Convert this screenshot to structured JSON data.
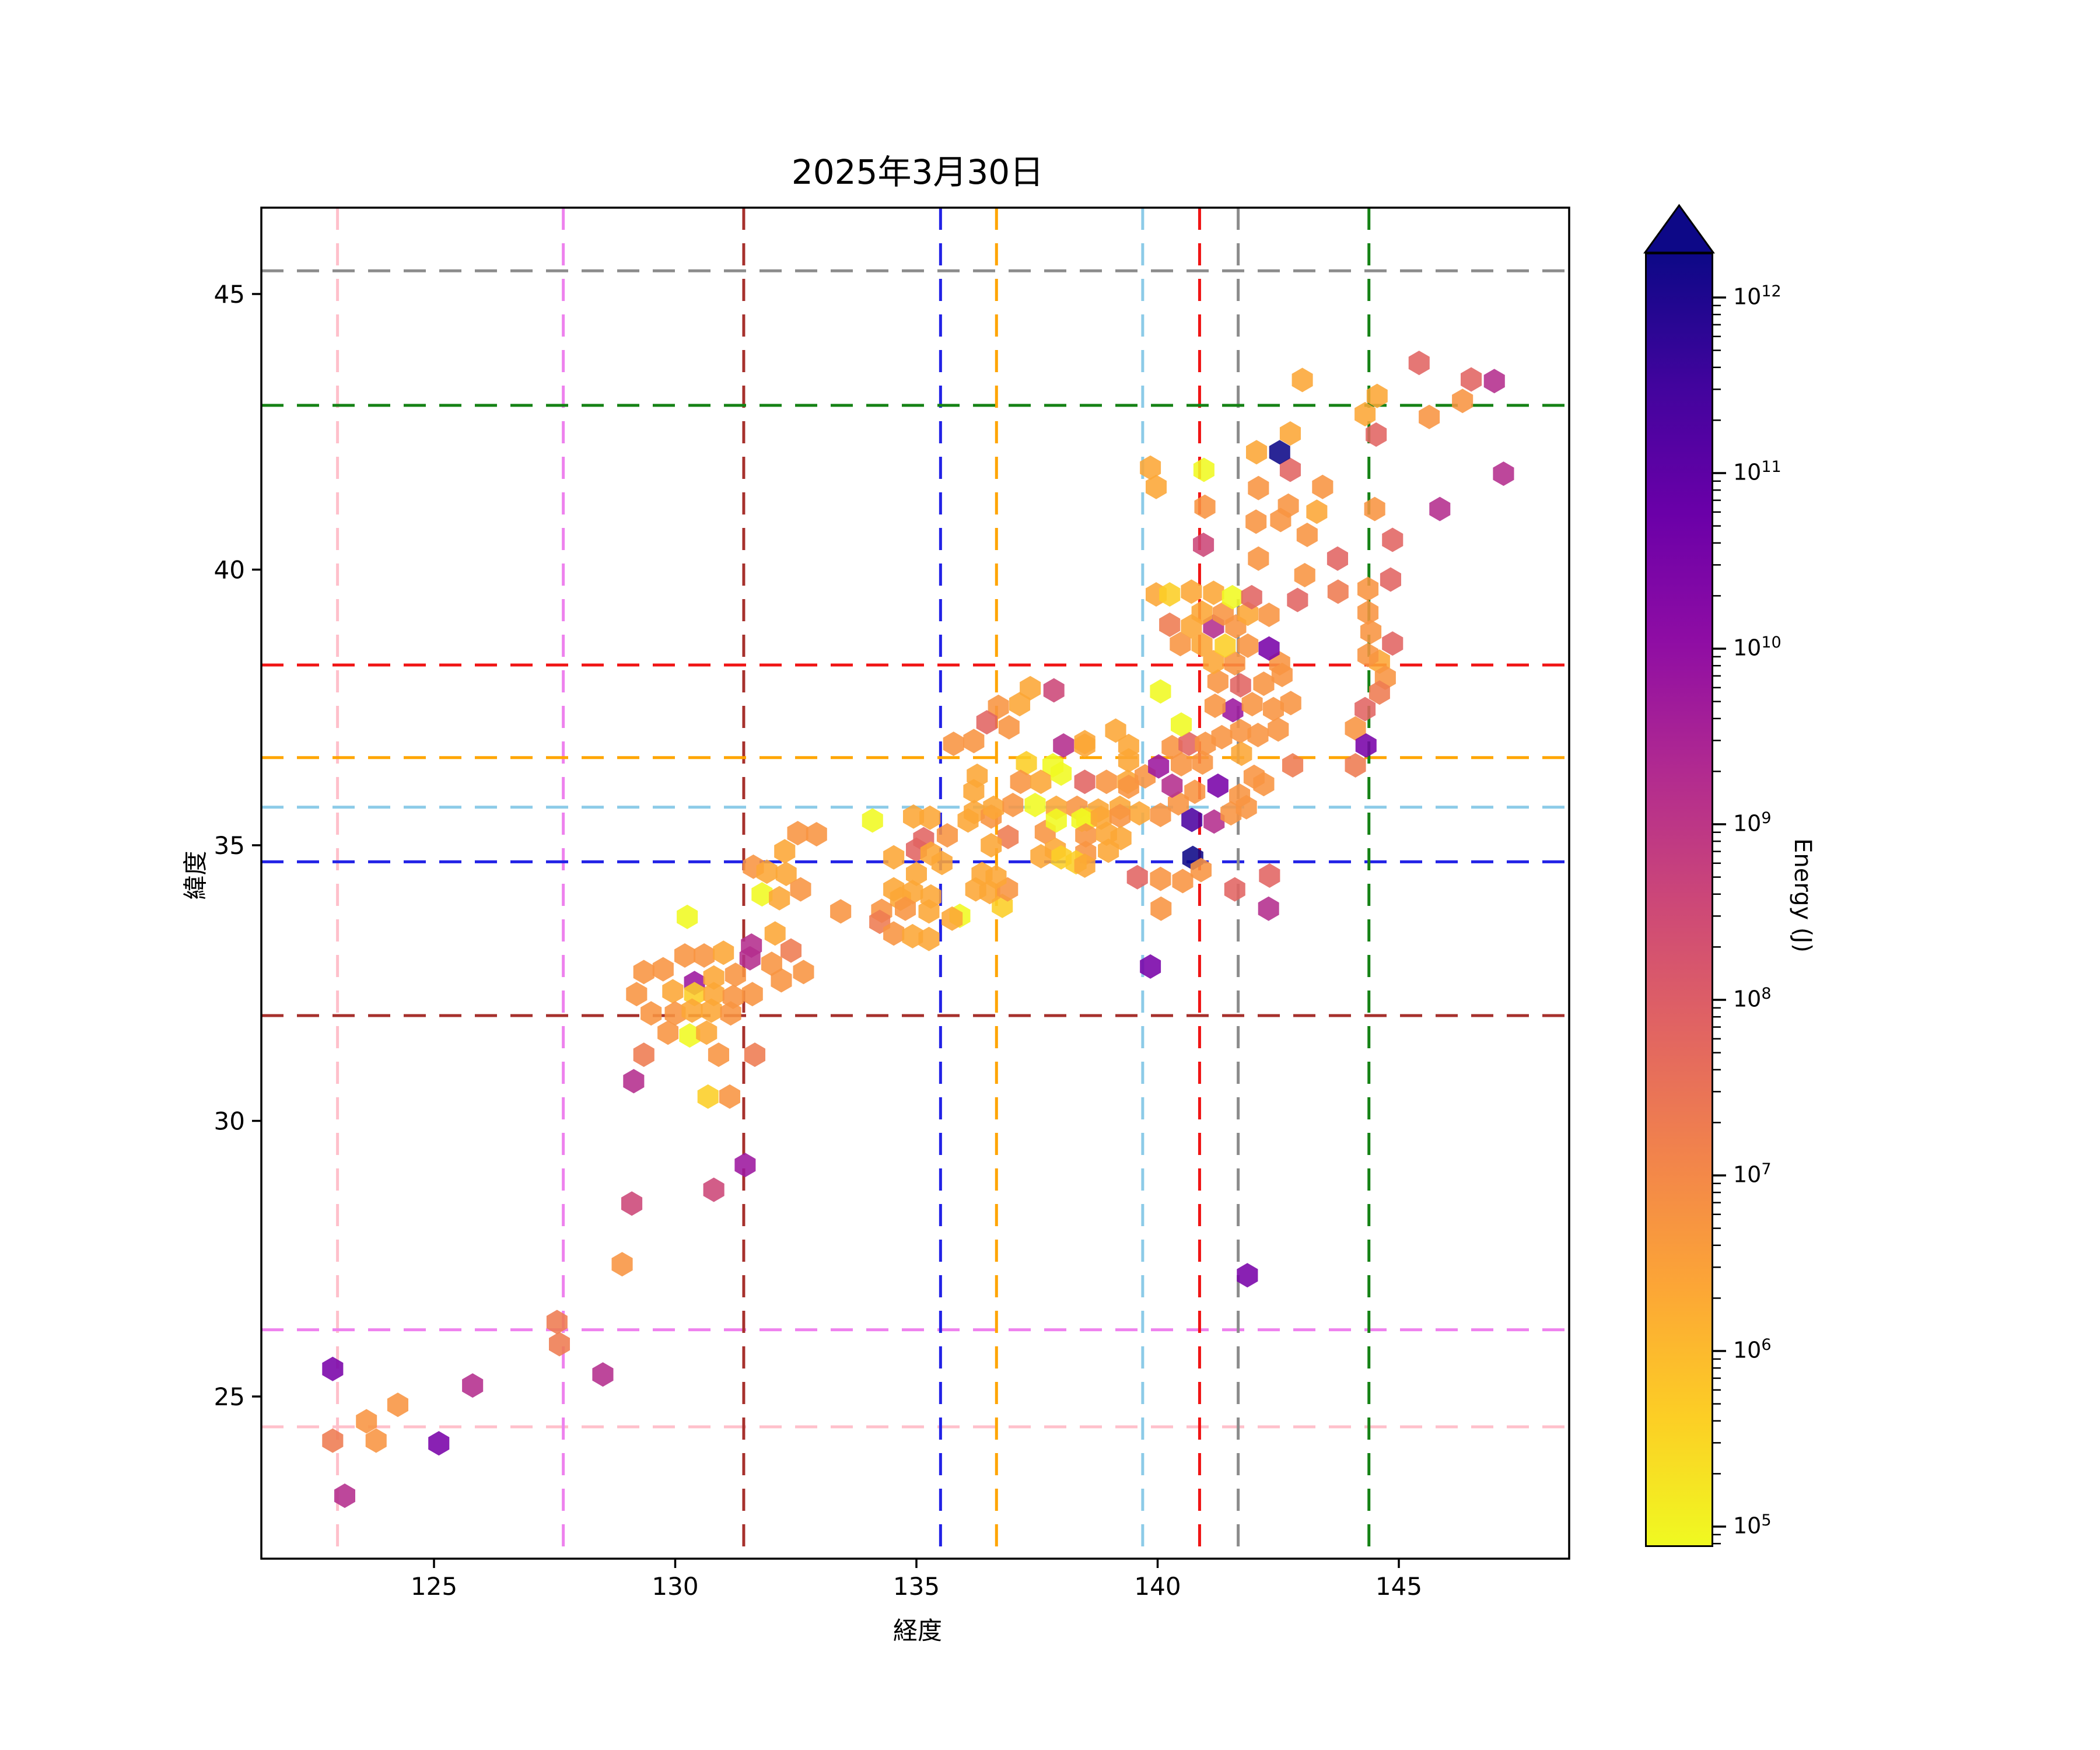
{
  "title": "2025年3月30日",
  "axes": {
    "xlabel": "経度",
    "ylabel": "緯度",
    "xticks": [
      125,
      130,
      135,
      140,
      145
    ],
    "yticks": [
      25,
      30,
      35,
      40,
      45
    ],
    "xlim": [
      121.42,
      148.53
    ],
    "ylim": [
      22.06,
      46.56
    ]
  },
  "colorbar": {
    "label": "Energy (J)",
    "scale": "log",
    "tick_exponents": [
      12,
      11,
      10,
      9,
      8,
      7,
      6,
      5
    ],
    "extend": "max",
    "cmap": "plasma_r",
    "gradient_stops_top_to_bottom": [
      "#0d0887",
      "#41049d",
      "#6a00a8",
      "#8f0da4",
      "#b12a90",
      "#cc4778",
      "#e16462",
      "#f2844b",
      "#fca636",
      "#fcce25",
      "#f0f921"
    ]
  },
  "reference_lines": [
    {
      "id": "pink",
      "color": "#ffc0cb",
      "lon": 123.0,
      "lat": 24.45
    },
    {
      "id": "violet",
      "color": "#ee82ee",
      "lon": 127.68,
      "lat": 26.21
    },
    {
      "id": "darkred",
      "color": "#a6302c",
      "lon": 131.42,
      "lat": 31.91
    },
    {
      "id": "blue",
      "color": "#2222e6",
      "lon": 135.5,
      "lat": 34.7
    },
    {
      "id": "orange",
      "color": "#ffa500",
      "lon": 136.66,
      "lat": 36.59
    },
    {
      "id": "skyblue",
      "color": "#8ccbe8",
      "lon": 139.69,
      "lat": 35.69
    },
    {
      "id": "red",
      "color": "#f01414",
      "lon": 140.87,
      "lat": 38.27
    },
    {
      "id": "gray",
      "color": "#8c8c8c",
      "lon": 141.67,
      "lat": 45.42
    },
    {
      "id": "green",
      "color": "#158215",
      "lon": 144.38,
      "lat": 42.98
    }
  ],
  "chart_data": {
    "type": "hexbin-scatter",
    "x_field": "longitude_deg",
    "y_field": "latitude_deg",
    "value_field": "log10_energy_J",
    "hex_rx_deg": 0.218,
    "hex_ry_deg": 0.222,
    "palette_bins": [
      {
        "max": 5.4,
        "color": "#f0f921"
      },
      {
        "max": 6.1,
        "color": "#fcce25"
      },
      {
        "max": 6.75,
        "color": "#fca636"
      },
      {
        "max": 7.4,
        "color": "#f89441"
      },
      {
        "max": 7.9,
        "color": "#ee7b51"
      },
      {
        "max": 8.35,
        "color": "#e16462"
      },
      {
        "max": 8.7,
        "color": "#cc4778"
      },
      {
        "max": 9.2,
        "color": "#b42e8d"
      },
      {
        "max": 9.9,
        "color": "#9c179e"
      },
      {
        "max": 10.6,
        "color": "#7902a8"
      },
      {
        "max": 11.5,
        "color": "#4c02a1"
      },
      {
        "max": 99,
        "color": "#0d0887"
      }
    ],
    "points": [
      [
        122.9,
        25.5,
        10.2
      ],
      [
        122.9,
        24.2,
        7.6
      ],
      [
        123.6,
        24.55,
        7.1
      ],
      [
        123.8,
        24.2,
        7.1
      ],
      [
        124.25,
        24.85,
        7.1
      ],
      [
        125.8,
        25.2,
        8.9
      ],
      [
        125.1,
        24.15,
        10.2
      ],
      [
        123.15,
        23.2,
        8.9
      ],
      [
        127.55,
        26.35,
        7.6
      ],
      [
        127.6,
        25.95,
        7.6
      ],
      [
        128.5,
        25.4,
        8.9
      ],
      [
        128.9,
        27.4,
        7.1
      ],
      [
        129.1,
        28.5,
        8.5
      ],
      [
        130.8,
        28.75,
        8.5
      ],
      [
        131.45,
        29.2,
        9.5
      ],
      [
        129.14,
        30.72,
        8.9
      ],
      [
        141.86,
        27.2,
        10.2
      ],
      [
        130.25,
        33.7,
        5.0
      ],
      [
        130.2,
        33.0,
        7.1
      ],
      [
        130.6,
        33.0,
        7.1
      ],
      [
        131.0,
        33.05,
        6.4
      ],
      [
        131.55,
        32.95,
        8.9
      ],
      [
        132.0,
        32.85,
        7.1
      ],
      [
        129.35,
        32.7,
        7.1
      ],
      [
        129.75,
        32.75,
        7.1
      ],
      [
        130.4,
        32.5,
        9.5
      ],
      [
        130.8,
        32.6,
        6.4
      ],
      [
        131.25,
        32.65,
        7.1
      ],
      [
        132.2,
        32.55,
        7.1
      ],
      [
        129.2,
        32.3,
        7.1
      ],
      [
        129.95,
        32.35,
        6.4
      ],
      [
        130.4,
        32.3,
        5.9
      ],
      [
        130.8,
        32.3,
        6.4
      ],
      [
        131.2,
        32.25,
        7.1
      ],
      [
        131.6,
        32.3,
        7.1
      ],
      [
        129.5,
        31.95,
        7.1
      ],
      [
        130.0,
        31.95,
        7.1
      ],
      [
        130.35,
        32.0,
        6.4
      ],
      [
        130.75,
        32.0,
        6.4
      ],
      [
        131.15,
        31.95,
        7.1
      ],
      [
        129.85,
        31.6,
        7.1
      ],
      [
        130.3,
        31.55,
        5.0
      ],
      [
        130.65,
        31.6,
        6.4
      ],
      [
        129.35,
        31.2,
        7.6
      ],
      [
        130.9,
        31.2,
        7.1
      ],
      [
        131.65,
        31.2,
        7.6
      ],
      [
        130.68,
        30.44,
        5.9
      ],
      [
        131.13,
        30.44,
        7.1
      ],
      [
        132.54,
        35.22,
        7.1
      ],
      [
        132.93,
        35.2,
        7.1
      ],
      [
        132.27,
        34.89,
        6.4
      ],
      [
        131.62,
        34.61,
        7.1
      ],
      [
        131.9,
        34.52,
        6.4
      ],
      [
        132.3,
        34.48,
        6.4
      ],
      [
        132.6,
        34.2,
        7.1
      ],
      [
        131.8,
        34.11,
        5.0
      ],
      [
        132.16,
        34.04,
        6.4
      ],
      [
        133.43,
        33.8,
        7.1
      ],
      [
        131.58,
        33.18,
        8.9
      ],
      [
        132.07,
        33.4,
        6.4
      ],
      [
        132.4,
        33.09,
        7.6
      ],
      [
        132.66,
        32.7,
        7.1
      ],
      [
        134.09,
        35.45,
        5.0
      ],
      [
        134.94,
        35.52,
        6.4
      ],
      [
        135.28,
        35.5,
        6.4
      ],
      [
        135.15,
        35.11,
        8.2
      ],
      [
        135.64,
        35.18,
        7.1
      ],
      [
        135.0,
        34.92,
        8.2
      ],
      [
        134.53,
        34.78,
        6.4
      ],
      [
        135.3,
        34.85,
        6.4
      ],
      [
        135.53,
        34.68,
        6.4
      ],
      [
        135.0,
        34.48,
        6.4
      ],
      [
        134.53,
        34.2,
        6.4
      ],
      [
        134.92,
        34.15,
        6.4
      ],
      [
        135.3,
        34.07,
        6.4
      ],
      [
        134.67,
        34.03,
        6.4
      ],
      [
        134.28,
        33.81,
        7.1
      ],
      [
        134.77,
        33.85,
        7.1
      ],
      [
        135.26,
        33.8,
        6.4
      ],
      [
        135.9,
        33.72,
        5.0
      ],
      [
        135.74,
        33.67,
        6.4
      ],
      [
        134.24,
        33.61,
        7.6
      ],
      [
        134.53,
        33.4,
        7.1
      ],
      [
        134.92,
        33.35,
        6.4
      ],
      [
        135.26,
        33.3,
        6.4
      ],
      [
        136.78,
        33.9,
        5.9
      ],
      [
        136.23,
        34.2,
        6.4
      ],
      [
        136.52,
        34.15,
        6.4
      ],
      [
        136.89,
        34.2,
        7.1
      ],
      [
        136.36,
        34.48,
        6.4
      ],
      [
        136.65,
        34.42,
        6.4
      ],
      [
        136.2,
        35.6,
        6.4
      ],
      [
        136.55,
        35.52,
        7.1
      ],
      [
        136.9,
        35.15,
        7.6
      ],
      [
        136.55,
        35.0,
        6.4
      ],
      [
        137.67,
        35.24,
        7.1
      ],
      [
        137.88,
        34.92,
        6.4
      ],
      [
        138.0,
        34.78,
        5.9
      ],
      [
        137.58,
        34.8,
        6.4
      ],
      [
        136.19,
        35.98,
        6.4
      ],
      [
        136.6,
        35.68,
        6.4
      ],
      [
        137.0,
        35.73,
        7.1
      ],
      [
        137.46,
        35.73,
        5.0
      ],
      [
        137.9,
        35.68,
        6.4
      ],
      [
        138.33,
        35.68,
        7.1
      ],
      [
        138.77,
        35.63,
        6.4
      ],
      [
        139.22,
        35.68,
        6.4
      ],
      [
        136.07,
        35.45,
        6.4
      ],
      [
        137.9,
        35.45,
        5.0
      ],
      [
        138.53,
        35.47,
        5.9
      ],
      [
        136.26,
        36.26,
        6.4
      ],
      [
        137.28,
        36.49,
        5.9
      ],
      [
        137.83,
        36.45,
        5.0
      ],
      [
        137.16,
        36.15,
        7.1
      ],
      [
        137.58,
        36.15,
        6.4
      ],
      [
        138.0,
        36.3,
        5.0
      ],
      [
        138.49,
        36.15,
        8.2
      ],
      [
        138.94,
        36.15,
        7.1
      ],
      [
        139.38,
        36.15,
        6.4
      ],
      [
        136.7,
        37.51,
        7.1
      ],
      [
        137.14,
        37.56,
        6.4
      ],
      [
        136.92,
        37.14,
        7.1
      ],
      [
        136.46,
        37.23,
        8.2
      ],
      [
        136.19,
        36.89,
        7.1
      ],
      [
        135.77,
        36.84,
        7.1
      ],
      [
        137.36,
        37.85,
        6.4
      ],
      [
        137.85,
        37.81,
        8.5
      ],
      [
        138.05,
        36.81,
        8.9
      ],
      [
        138.49,
        36.81,
        6.4
      ],
      [
        139.13,
        37.08,
        6.4
      ],
      [
        139.4,
        36.8,
        6.4
      ],
      [
        139.62,
        35.58,
        6.4
      ],
      [
        140.06,
        35.55,
        7.1
      ],
      [
        140.43,
        35.76,
        7.1
      ],
      [
        140.77,
        35.97,
        7.1
      ],
      [
        140.71,
        35.46,
        11.0
      ],
      [
        141.17,
        35.43,
        8.9
      ],
      [
        141.52,
        35.58,
        7.1
      ],
      [
        141.84,
        35.69,
        7.1
      ],
      [
        139.74,
        36.25,
        7.1
      ],
      [
        140.02,
        36.43,
        9.5
      ],
      [
        140.3,
        36.08,
        8.9
      ],
      [
        140.49,
        36.47,
        7.1
      ],
      [
        140.93,
        36.5,
        7.1
      ],
      [
        141.25,
        36.08,
        10.2
      ],
      [
        140.3,
        36.78,
        7.1
      ],
      [
        140.65,
        36.84,
        8.2
      ],
      [
        140.99,
        36.84,
        7.1
      ],
      [
        139.4,
        36.54,
        6.4
      ],
      [
        139.4,
        36.06,
        7.1
      ],
      [
        138.49,
        36.87,
        6.4
      ],
      [
        140.06,
        37.79,
        5.0
      ],
      [
        140.49,
        37.19,
        5.0
      ],
      [
        138.43,
        35.46,
        5.0
      ],
      [
        138.83,
        35.5,
        6.4
      ],
      [
        139.22,
        35.53,
        7.1
      ],
      [
        138.51,
        35.18,
        7.1
      ],
      [
        138.94,
        35.21,
        6.4
      ],
      [
        139.24,
        35.13,
        6.4
      ],
      [
        138.51,
        34.86,
        7.1
      ],
      [
        138.98,
        34.9,
        6.4
      ],
      [
        138.31,
        34.69,
        5.9
      ],
      [
        138.49,
        34.63,
        6.4
      ],
      [
        140.73,
        34.77,
        12.2
      ],
      [
        139.58,
        34.42,
        8.2
      ],
      [
        140.06,
        34.39,
        7.1
      ],
      [
        140.52,
        34.35,
        7.1
      ],
      [
        140.9,
        34.55,
        7.1
      ],
      [
        142.32,
        34.45,
        8.2
      ],
      [
        141.6,
        34.2,
        8.2
      ],
      [
        142.3,
        33.85,
        8.9
      ],
      [
        140.07,
        33.85,
        7.1
      ],
      [
        139.85,
        32.8,
        10.2
      ],
      [
        141.25,
        37.97,
        7.1
      ],
      [
        141.72,
        37.9,
        8.2
      ],
      [
        142.2,
        37.93,
        7.1
      ],
      [
        142.58,
        38.09,
        7.1
      ],
      [
        141.56,
        37.45,
        9.5
      ],
      [
        141.19,
        37.53,
        7.1
      ],
      [
        141.96,
        37.56,
        7.1
      ],
      [
        142.4,
        37.47,
        7.1
      ],
      [
        142.76,
        37.58,
        7.1
      ],
      [
        141.33,
        36.96,
        7.1
      ],
      [
        141.72,
        37.07,
        7.1
      ],
      [
        142.08,
        37.0,
        7.1
      ],
      [
        142.5,
        37.1,
        7.1
      ],
      [
        141.74,
        36.66,
        6.4
      ],
      [
        142.8,
        36.45,
        7.6
      ],
      [
        142.0,
        36.24,
        7.1
      ],
      [
        142.2,
        36.11,
        7.1
      ],
      [
        141.7,
        35.9,
        7.1
      ],
      [
        144.6,
        38.33,
        6.4
      ],
      [
        144.72,
        38.04,
        7.1
      ],
      [
        144.6,
        37.77,
        7.6
      ],
      [
        144.3,
        37.47,
        8.2
      ],
      [
        144.1,
        37.12,
        7.1
      ],
      [
        144.32,
        36.81,
        10.2
      ],
      [
        144.1,
        36.45,
        7.6
      ],
      [
        141.16,
        38.32,
        6.4
      ],
      [
        141.6,
        38.3,
        7.1
      ],
      [
        142.53,
        38.3,
        7.1
      ],
      [
        140.47,
        38.65,
        7.1
      ],
      [
        140.92,
        38.64,
        6.4
      ],
      [
        141.4,
        38.62,
        5.9
      ],
      [
        141.87,
        38.62,
        7.1
      ],
      [
        142.31,
        38.57,
        10.2
      ],
      [
        140.25,
        39.0,
        7.6
      ],
      [
        140.7,
        38.97,
        6.4
      ],
      [
        141.16,
        38.97,
        8.9
      ],
      [
        141.62,
        38.97,
        7.1
      ],
      [
        140.92,
        39.22,
        6.4
      ],
      [
        141.36,
        39.2,
        7.1
      ],
      [
        141.87,
        39.2,
        6.4
      ],
      [
        142.31,
        39.18,
        7.1
      ],
      [
        142.9,
        39.45,
        8.2
      ],
      [
        139.97,
        39.55,
        6.4
      ],
      [
        140.25,
        39.55,
        5.9
      ],
      [
        140.7,
        39.6,
        6.4
      ],
      [
        141.16,
        39.58,
        6.4
      ],
      [
        141.55,
        39.5,
        5.0
      ],
      [
        141.95,
        39.5,
        8.2
      ],
      [
        143.74,
        39.6,
        7.6
      ],
      [
        142.09,
        40.2,
        7.1
      ],
      [
        143.05,
        39.9,
        7.1
      ],
      [
        143.73,
        40.2,
        8.2
      ],
      [
        140.95,
        40.45,
        8.5
      ],
      [
        142.04,
        40.87,
        7.1
      ],
      [
        142.55,
        40.9,
        7.1
      ],
      [
        143.1,
        40.63,
        7.1
      ],
      [
        140.98,
        41.14,
        7.1
      ],
      [
        142.71,
        41.16,
        7.1
      ],
      [
        143.42,
        41.5,
        7.1
      ],
      [
        143.3,
        41.05,
        6.4
      ],
      [
        144.5,
        41.1,
        7.1
      ],
      [
        139.97,
        41.5,
        6.4
      ],
      [
        142.09,
        41.48,
        7.1
      ],
      [
        139.85,
        41.85,
        6.4
      ],
      [
        140.96,
        41.81,
        5.0
      ],
      [
        142.75,
        41.81,
        8.2
      ],
      [
        142.53,
        42.13,
        12.2
      ],
      [
        142.05,
        42.13,
        6.4
      ],
      [
        142.75,
        42.47,
        6.4
      ],
      [
        144.36,
        39.65,
        7.1
      ],
      [
        144.83,
        39.82,
        8.2
      ],
      [
        144.36,
        39.22,
        7.1
      ],
      [
        144.42,
        38.87,
        7.1
      ],
      [
        144.87,
        38.66,
        8.2
      ],
      [
        144.36,
        38.45,
        7.1
      ],
      [
        144.87,
        40.54,
        8.2
      ],
      [
        143.0,
        43.44,
        6.4
      ],
      [
        144.55,
        43.15,
        6.4
      ],
      [
        144.3,
        42.82,
        6.4
      ],
      [
        144.53,
        42.45,
        8.2
      ],
      [
        145.42,
        43.75,
        8.2
      ],
      [
        146.5,
        43.45,
        8.2
      ],
      [
        146.98,
        43.42,
        8.9
      ],
      [
        146.32,
        43.06,
        7.1
      ],
      [
        145.63,
        42.77,
        7.1
      ],
      [
        147.17,
        41.74,
        8.9
      ],
      [
        145.85,
        41.1,
        8.9
      ]
    ]
  }
}
